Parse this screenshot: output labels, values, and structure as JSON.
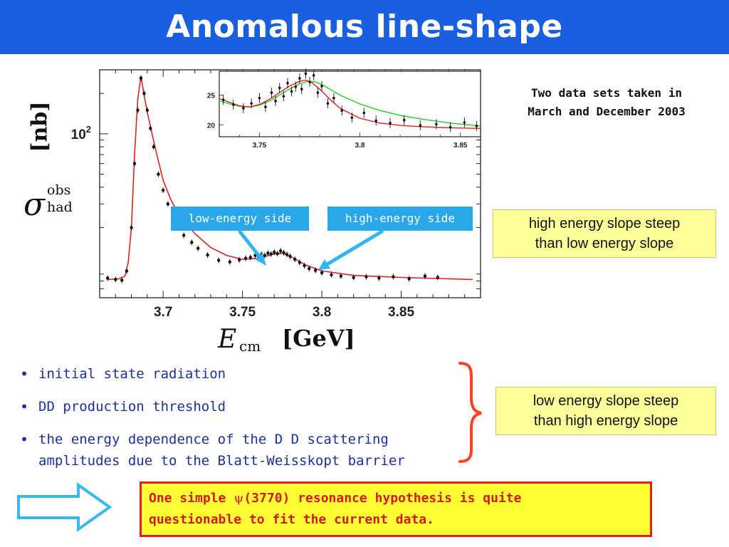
{
  "slide": {
    "title": "Anomalous line-shape"
  },
  "colors": {
    "title_bar": "#1a5fe0",
    "fit_curve": "#e02020",
    "inset_alt_fit": "#22cc22",
    "callout_fill": "#2aa7e8",
    "yellow_note": "#ffff99",
    "conclusion_fill": "#ffff33",
    "conclusion_border": "#e02020",
    "bullet_text": "#1c2f9c",
    "brace": "#ff4020",
    "big_arrow": "#38b8f0"
  },
  "chart_data": [
    {
      "type": "scatter",
      "title": "",
      "xlabel": {
        "symbol": "E",
        "subscript": "cm",
        "unit": "[GeV]"
      },
      "ylabel": {
        "symbol": "σ",
        "superscript": "obs",
        "subscript": "had",
        "unit": "[nb]"
      },
      "yscale": "log",
      "xlim": [
        3.66,
        3.9
      ],
      "ylim": [
        6,
        300
      ],
      "x_ticks": [
        3.7,
        3.75,
        3.8,
        3.85
      ],
      "x_tick_labels": [
        "3.7",
        "3.75",
        "3.8",
        "3.85"
      ],
      "y_ticks": [
        100
      ],
      "y_tick_label": {
        "base": "10",
        "exp": "2"
      },
      "grid": false,
      "series": [
        {
          "kind": "points",
          "x": [
            3.665,
            3.67,
            3.674,
            3.677,
            3.68,
            3.682,
            3.684,
            3.686,
            3.688,
            3.69,
            3.692,
            3.694,
            3.697,
            3.7,
            3.703,
            3.706,
            3.71,
            3.713,
            3.718,
            3.722,
            3.728,
            3.735,
            3.742,
            3.748,
            3.752,
            3.755,
            3.758,
            3.76,
            3.762,
            3.764,
            3.766,
            3.768,
            3.77,
            3.772,
            3.774,
            3.776,
            3.778,
            3.78,
            3.783,
            3.786,
            3.789,
            3.792,
            3.796,
            3.8,
            3.806,
            3.812,
            3.82,
            3.828,
            3.836,
            3.845,
            3.855,
            3.865,
            3.873
          ],
          "y": [
            8.4,
            8.2,
            8.1,
            9.5,
            20,
            60,
            150,
            260,
            200,
            150,
            110,
            80,
            50,
            38,
            30,
            25,
            20,
            17.5,
            15.5,
            14,
            12.5,
            11.4,
            11.1,
            11.5,
            11.8,
            12.0,
            12.4,
            12.0,
            12.6,
            12.4,
            12.9,
            12.7,
            13.1,
            12.8,
            13.4,
            13.0,
            12.6,
            12.2,
            11.6,
            11.0,
            10.4,
            9.9,
            9.6,
            9.2,
            8.9,
            8.7,
            8.5,
            8.6,
            8.4,
            8.6,
            8.3,
            8.7,
            8.5
          ]
        },
        {
          "kind": "fit-line",
          "color": "#e02020",
          "x": [
            3.665,
            3.672,
            3.676,
            3.678,
            3.68,
            3.682,
            3.684,
            3.686,
            3.688,
            3.69,
            3.693,
            3.696,
            3.7,
            3.705,
            3.71,
            3.72,
            3.73,
            3.74,
            3.75,
            3.76,
            3.77,
            3.775,
            3.78,
            3.79,
            3.8,
            3.82,
            3.85,
            3.88,
            3.895
          ],
          "y": [
            8.2,
            8.3,
            8.7,
            11,
            20,
            70,
            180,
            270,
            195,
            145,
            100,
            70,
            45,
            32,
            25,
            18,
            14.2,
            12.4,
            11.6,
            11.8,
            12.7,
            12.9,
            12.2,
            10.5,
            9.5,
            8.8,
            8.5,
            8.3,
            8.2
          ]
        }
      ]
    },
    {
      "type": "scatter",
      "title": "",
      "xlim": [
        3.73,
        3.86
      ],
      "ylim": [
        18,
        29
      ],
      "x_ticks": [
        3.75,
        3.8,
        3.85
      ],
      "x_tick_labels": [
        "3.75",
        "3.8",
        "3.85"
      ],
      "y_ticks": [
        20,
        25
      ],
      "y_tick_labels": [
        "20",
        "25"
      ],
      "grid": false,
      "series": [
        {
          "kind": "points",
          "x": [
            3.732,
            3.737,
            3.742,
            3.746,
            3.75,
            3.753,
            3.756,
            3.758,
            3.76,
            3.762,
            3.764,
            3.766,
            3.768,
            3.77,
            3.771,
            3.773,
            3.775,
            3.777,
            3.779,
            3.781,
            3.784,
            3.787,
            3.791,
            3.796,
            3.802,
            3.808,
            3.815,
            3.822,
            3.83,
            3.838,
            3.845,
            3.852,
            3.858
          ],
          "y": [
            24.2,
            23.4,
            22.8,
            23.6,
            24.5,
            23.0,
            25.4,
            24.0,
            26.2,
            24.8,
            27.0,
            25.6,
            26.4,
            27.8,
            26.0,
            28.6,
            27.2,
            28.3,
            25.4,
            26.5,
            23.6,
            24.5,
            22.4,
            21.2,
            22.0,
            20.7,
            20.3,
            20.8,
            19.9,
            20.1,
            19.6,
            20.4,
            19.8
          ]
        },
        {
          "kind": "fit-line",
          "color": "#e02020",
          "x": [
            3.73,
            3.74,
            3.745,
            3.75,
            3.755,
            3.76,
            3.765,
            3.77,
            3.773,
            3.776,
            3.78,
            3.785,
            3.79,
            3.8,
            3.81,
            3.82,
            3.83,
            3.845,
            3.86
          ],
          "y": [
            24.4,
            23.2,
            23.0,
            23.4,
            24.3,
            25.4,
            26.5,
            27.3,
            27.5,
            27.1,
            26.0,
            24.3,
            22.8,
            21.1,
            20.3,
            19.9,
            19.7,
            19.5,
            19.4
          ]
        },
        {
          "kind": "fit-line",
          "color": "#22cc22",
          "x": [
            3.73,
            3.74,
            3.745,
            3.75,
            3.755,
            3.76,
            3.765,
            3.77,
            3.774,
            3.778,
            3.782,
            3.786,
            3.79,
            3.8,
            3.81,
            3.82,
            3.83,
            3.845,
            3.86
          ],
          "y": [
            24.0,
            23.1,
            23.0,
            23.3,
            24.0,
            25.0,
            26.0,
            26.9,
            27.3,
            27.2,
            26.6,
            25.8,
            25.0,
            23.5,
            22.4,
            21.6,
            21.0,
            20.3,
            19.8
          ]
        }
      ]
    }
  ],
  "callouts": {
    "low_energy_side": "low-energy side",
    "high_energy_side": "high-energy side"
  },
  "notes": {
    "two_data_sets_line1": "Two data sets taken in",
    "two_data_sets_line2": "March and December 2003",
    "high_energy_slope_line1": "high energy slope steep",
    "high_energy_slope_line2": "than low energy slope",
    "low_energy_slope_line1": "low energy slope steep",
    "low_energy_slope_line2": "than high energy slope"
  },
  "bullets": [
    {
      "text": "initial state radiation"
    },
    {
      "text": "DD production threshold"
    },
    {
      "line1": "the energy dependence of the D D scattering",
      "line2": "amplitudes due to the Blatt-Weisskopt barrier"
    }
  ],
  "conclusion": {
    "prefix": "One simple ",
    "psi": "ψ",
    "rest_line1": "(3770) resonance hypothesis is quite",
    "line2": "questionable to fit the current data."
  },
  "icons": {
    "bullet": "•",
    "brace": "right-curly-brace-icon",
    "arrow": "right-arrow-icon"
  }
}
